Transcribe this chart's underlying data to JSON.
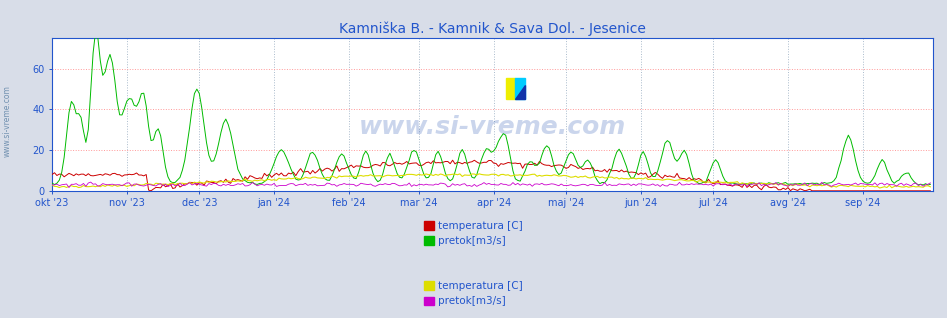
{
  "title": "Kamniška B. - Kamnik & Sava Dol. - Jesenice",
  "title_color": "#2255cc",
  "background_color": "#d8dde8",
  "plot_bg_color": "#ffffff",
  "grid_color_h": "#ff9999",
  "grid_color_v": "#aabbcc",
  "xlim_days": 365,
  "ylim": [
    0,
    75
  ],
  "yticks": [
    0,
    20,
    40,
    60
  ],
  "xlabel_color": "#2255cc",
  "watermark": "www.si-vreme.com",
  "watermark_color": "#1144aa",
  "left_label": "www.si-vreme.com",
  "legend_items": [
    {
      "label": "temperatura [C]",
      "color": "#cc0000"
    },
    {
      "label": "pretok[m3/s]",
      "color": "#00bb00"
    },
    {
      "label": "temperatura [C]",
      "color": "#dddd00"
    },
    {
      "label": "pretok[m3/s]",
      "color": "#cc00cc"
    }
  ],
  "x_tick_labels": [
    "okt '23",
    "nov '23",
    "dec '23",
    "jan '24",
    "feb '24",
    "mar '24",
    "apr '24",
    "maj '24",
    "jun '24",
    "jul '24",
    "avg '24",
    "sep '24"
  ],
  "x_tick_positions": [
    0,
    31,
    61,
    92,
    123,
    152,
    183,
    213,
    244,
    274,
    305,
    336
  ]
}
